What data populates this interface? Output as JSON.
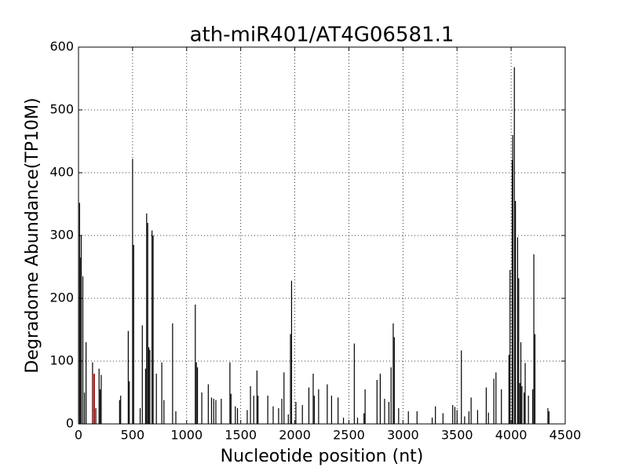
{
  "chart_data": {
    "type": "stem",
    "title": "ath-miR401/AT4G06581.1",
    "xlabel": "Nucleotide position (nt)",
    "ylabel": "Degradome Abundance(TP10M)",
    "xlim": [
      0,
      4500
    ],
    "xticks": [
      0,
      500,
      1000,
      1500,
      2000,
      2500,
      3000,
      3500,
      4000,
      4500
    ],
    "ylim": [
      0,
      600
    ],
    "yticks": [
      0,
      100,
      200,
      300,
      400,
      500,
      600
    ],
    "grid": true,
    "series": [
      {
        "color": "#000000",
        "x": [
          10,
          15,
          25,
          40,
          55,
          70,
          130,
          160,
          190,
          200,
          210,
          380,
          390,
          460,
          470,
          500,
          510,
          570,
          590,
          620,
          630,
          640,
          650,
          660,
          680,
          690,
          720,
          770,
          790,
          870,
          900,
          1080,
          1090,
          1100,
          1140,
          1200,
          1230,
          1250,
          1270,
          1320,
          1400,
          1410,
          1450,
          1470,
          1560,
          1590,
          1620,
          1650,
          1660,
          1750,
          1800,
          1850,
          1880,
          1900,
          1940,
          1960,
          1970,
          2010,
          2070,
          2130,
          2170,
          2180,
          2220,
          2300,
          2340,
          2400,
          2450,
          2550,
          2580,
          2640,
          2650,
          2760,
          2790,
          2830,
          2870,
          2890,
          2910,
          2920,
          2960,
          3050,
          3130,
          3270,
          3300,
          3370,
          3460,
          3480,
          3500,
          3540,
          3570,
          3610,
          3630,
          3690,
          3770,
          3790,
          3840,
          3860,
          3910,
          3980,
          3990,
          4010,
          4015,
          4030,
          4040,
          4060,
          4070,
          4080,
          4090,
          4100,
          4120,
          4130,
          4160,
          4200,
          4210,
          4220,
          4340,
          4350
        ],
        "values": [
          352,
          265,
          300,
          235,
          50,
          130,
          98,
          25,
          88,
          55,
          78,
          38,
          45,
          148,
          68,
          422,
          285,
          25,
          157,
          88,
          335,
          320,
          122,
          118,
          308,
          300,
          80,
          98,
          38,
          160,
          20,
          190,
          98,
          90,
          50,
          63,
          42,
          40,
          38,
          40,
          98,
          48,
          28,
          25,
          22,
          60,
          45,
          85,
          45,
          45,
          28,
          25,
          40,
          82,
          15,
          143,
          228,
          35,
          30,
          58,
          80,
          45,
          55,
          63,
          45,
          42,
          10,
          128,
          10,
          17,
          55,
          70,
          80,
          40,
          35,
          90,
          160,
          138,
          25,
          20,
          20,
          10,
          28,
          17,
          30,
          27,
          22,
          117,
          12,
          20,
          42,
          22,
          58,
          18,
          72,
          82,
          55,
          110,
          245,
          420,
          460,
          568,
          355,
          297,
          232,
          65,
          130,
          60,
          50,
          97,
          45,
          55,
          270,
          143,
          25,
          20
        ]
      },
      {
        "color": "#ff0000",
        "x": [
          145
        ],
        "values": [
          80
        ]
      }
    ]
  }
}
